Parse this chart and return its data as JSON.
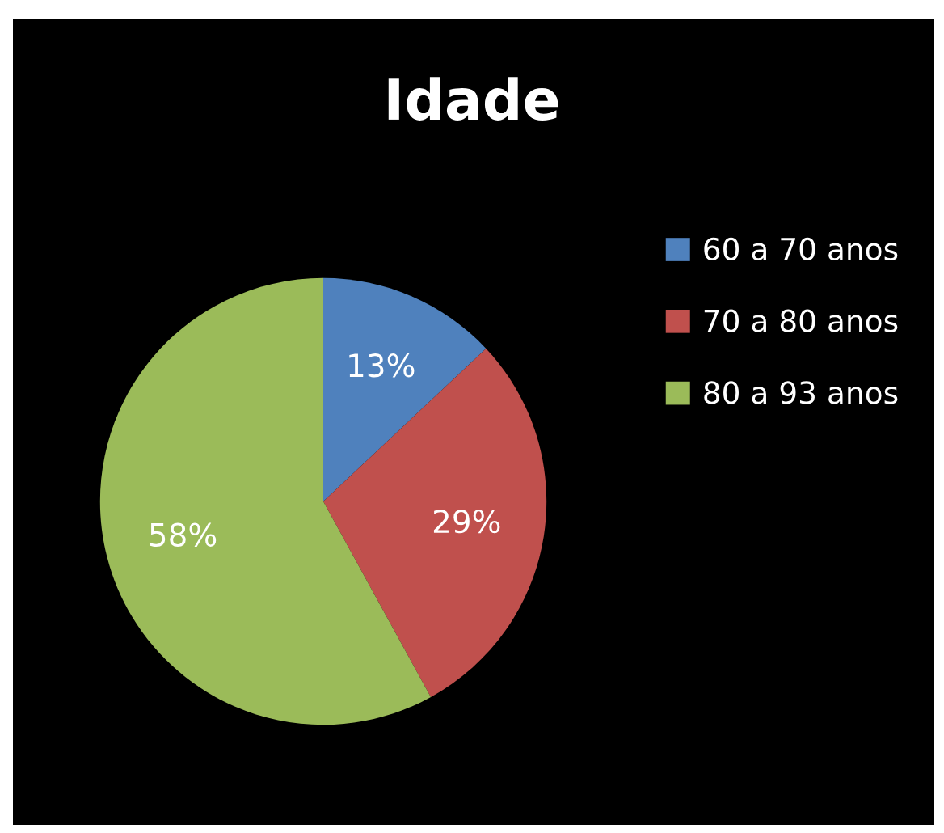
{
  "chart_data": {
    "type": "pie",
    "title": "Idade",
    "categories": [
      "60 a 70 anos",
      "70 a 80 anos",
      "80 a 93 anos"
    ],
    "values": [
      13,
      29,
      58
    ],
    "colors": [
      "#4f81bd",
      "#c0504d",
      "#9bbb59"
    ],
    "value_labels": [
      "13%",
      "29%",
      "58%"
    ],
    "legend": "right"
  }
}
